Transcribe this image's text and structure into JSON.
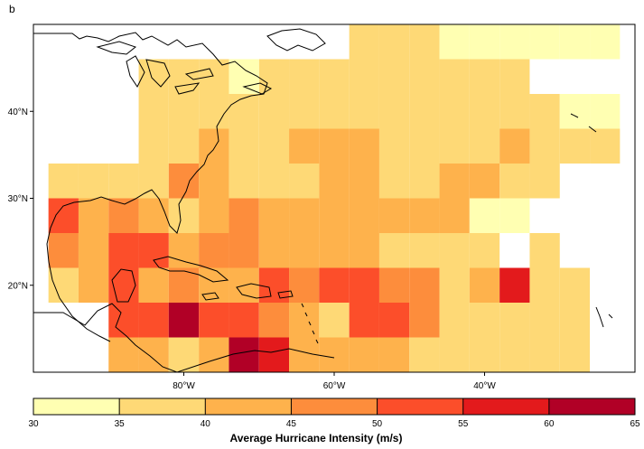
{
  "panel_label": "b",
  "map": {
    "lat_ticks": [
      {
        "value": 40,
        "label": "40°N"
      },
      {
        "value": 30,
        "label": "30°N"
      },
      {
        "value": 20,
        "label": "20°N"
      }
    ],
    "lon_ticks": [
      {
        "value": -80,
        "label": "80°W"
      },
      {
        "value": -60,
        "label": "60°W"
      },
      {
        "value": -40,
        "label": "40°W"
      }
    ],
    "extent": {
      "lon_min": -100,
      "lon_max": -20,
      "lat_min": 10,
      "lat_max": 50
    }
  },
  "colorbar": {
    "title": "Average Hurricane Intensity (m/s)",
    "breaks": [
      30,
      35,
      40,
      45,
      50,
      55,
      60,
      65
    ],
    "colors": [
      "#ffffb2",
      "#fed976",
      "#feb24c",
      "#fd8d3c",
      "#fc4e2a",
      "#e31a1c",
      "#b10026"
    ]
  },
  "chart_data": {
    "type": "heatmap",
    "title": "",
    "value_label": "Average Hurricane Intensity (m/s)",
    "cell_size_deg": 4,
    "value_note": "cell values are the representative midpoint of the colour bin (m/s)",
    "cells": [
      [
        -56,
        48,
        37
      ],
      [
        -52,
        48,
        37
      ],
      [
        -48,
        48,
        37
      ],
      [
        -44,
        48,
        33
      ],
      [
        -40,
        48,
        33
      ],
      [
        -36,
        48,
        33
      ],
      [
        -32,
        48,
        33
      ],
      [
        -28,
        48,
        33
      ],
      [
        -24,
        48,
        33
      ],
      [
        -68,
        44,
        37
      ],
      [
        -64,
        44,
        37
      ],
      [
        -60,
        44,
        37
      ],
      [
        -56,
        44,
        37
      ],
      [
        -52,
        44,
        37
      ],
      [
        -48,
        44,
        37
      ],
      [
        -44,
        44,
        37
      ],
      [
        -40,
        44,
        37
      ],
      [
        -36,
        44,
        37
      ],
      [
        -72,
        44,
        33
      ],
      [
        -84,
        44,
        37
      ],
      [
        -80,
        44,
        37
      ],
      [
        -76,
        44,
        37
      ],
      [
        -84,
        40,
        37
      ],
      [
        -80,
        40,
        37
      ],
      [
        -76,
        40,
        37
      ],
      [
        -72,
        40,
        37
      ],
      [
        -68,
        40,
        37
      ],
      [
        -64,
        40,
        37
      ],
      [
        -60,
        40,
        37
      ],
      [
        -56,
        40,
        37
      ],
      [
        -52,
        40,
        37
      ],
      [
        -48,
        40,
        37
      ],
      [
        -44,
        40,
        37
      ],
      [
        -40,
        40,
        37
      ],
      [
        -36,
        40,
        37
      ],
      [
        -32,
        40,
        37
      ],
      [
        -28,
        40,
        33
      ],
      [
        -24,
        40,
        33
      ],
      [
        -84,
        36,
        37
      ],
      [
        -80,
        36,
        37
      ],
      [
        -76,
        36,
        42
      ],
      [
        -72,
        36,
        37
      ],
      [
        -68,
        36,
        37
      ],
      [
        -64,
        36,
        42
      ],
      [
        -60,
        36,
        42
      ],
      [
        -56,
        36,
        42
      ],
      [
        -52,
        36,
        37
      ],
      [
        -48,
        36,
        37
      ],
      [
        -44,
        36,
        37
      ],
      [
        -40,
        36,
        37
      ],
      [
        -36,
        36,
        42
      ],
      [
        -32,
        36,
        37
      ],
      [
        -28,
        36,
        37
      ],
      [
        -24,
        36,
        37
      ],
      [
        -96,
        32,
        37
      ],
      [
        -92,
        32,
        37
      ],
      [
        -88,
        32,
        37
      ],
      [
        -84,
        32,
        37
      ],
      [
        -80,
        32,
        47
      ],
      [
        -76,
        32,
        42
      ],
      [
        -72,
        32,
        37
      ],
      [
        -68,
        32,
        37
      ],
      [
        -64,
        32,
        37
      ],
      [
        -60,
        32,
        42
      ],
      [
        -56,
        32,
        42
      ],
      [
        -52,
        32,
        37
      ],
      [
        -48,
        32,
        37
      ],
      [
        -44,
        32,
        42
      ],
      [
        -40,
        32,
        42
      ],
      [
        -36,
        32,
        37
      ],
      [
        -32,
        32,
        37
      ],
      [
        -96,
        28,
        52
      ],
      [
        -92,
        28,
        42
      ],
      [
        -88,
        28,
        47
      ],
      [
        -84,
        28,
        42
      ],
      [
        -80,
        28,
        37
      ],
      [
        -76,
        28,
        42
      ],
      [
        -72,
        28,
        47
      ],
      [
        -68,
        28,
        42
      ],
      [
        -64,
        28,
        42
      ],
      [
        -60,
        28,
        42
      ],
      [
        -56,
        28,
        42
      ],
      [
        -52,
        28,
        42
      ],
      [
        -48,
        28,
        42
      ],
      [
        -44,
        28,
        42
      ],
      [
        -40,
        28,
        33
      ],
      [
        -36,
        28,
        33
      ],
      [
        -96,
        24,
        47
      ],
      [
        -92,
        24,
        42
      ],
      [
        -88,
        24,
        52
      ],
      [
        -84,
        24,
        52
      ],
      [
        -80,
        24,
        42
      ],
      [
        -76,
        24,
        47
      ],
      [
        -72,
        24,
        47
      ],
      [
        -68,
        24,
        42
      ],
      [
        -64,
        24,
        42
      ],
      [
        -60,
        24,
        42
      ],
      [
        -56,
        24,
        42
      ],
      [
        -52,
        24,
        37
      ],
      [
        -48,
        24,
        37
      ],
      [
        -44,
        24,
        37
      ],
      [
        -40,
        24,
        37
      ],
      [
        -32,
        24,
        37
      ],
      [
        -96,
        20,
        37
      ],
      [
        -92,
        20,
        42
      ],
      [
        -88,
        20,
        52
      ],
      [
        -84,
        20,
        42
      ],
      [
        -80,
        20,
        47
      ],
      [
        -76,
        20,
        42
      ],
      [
        -72,
        20,
        42
      ],
      [
        -68,
        20,
        52
      ],
      [
        -64,
        20,
        47
      ],
      [
        -60,
        20,
        52
      ],
      [
        -56,
        20,
        52
      ],
      [
        -52,
        20,
        47
      ],
      [
        -48,
        20,
        47
      ],
      [
        -44,
        20,
        37
      ],
      [
        -40,
        20,
        42
      ],
      [
        -36,
        20,
        57
      ],
      [
        -32,
        20,
        37
      ],
      [
        -28,
        20,
        37
      ],
      [
        -88,
        16,
        52
      ],
      [
        -84,
        16,
        52
      ],
      [
        -80,
        16,
        62
      ],
      [
        -76,
        16,
        52
      ],
      [
        -72,
        16,
        52
      ],
      [
        -68,
        16,
        47
      ],
      [
        -64,
        16,
        42
      ],
      [
        -60,
        16,
        37
      ],
      [
        -56,
        16,
        52
      ],
      [
        -52,
        16,
        52
      ],
      [
        -48,
        16,
        47
      ],
      [
        -44,
        16,
        37
      ],
      [
        -40,
        16,
        37
      ],
      [
        -36,
        16,
        37
      ],
      [
        -32,
        16,
        37
      ],
      [
        -28,
        16,
        37
      ],
      [
        -88,
        12,
        42
      ],
      [
        -84,
        12,
        42
      ],
      [
        -80,
        12,
        37
      ],
      [
        -76,
        12,
        42
      ],
      [
        -72,
        12,
        62
      ],
      [
        -68,
        12,
        57
      ],
      [
        -64,
        12,
        42
      ],
      [
        -60,
        12,
        42
      ],
      [
        -56,
        12,
        42
      ],
      [
        -52,
        12,
        42
      ],
      [
        -48,
        12,
        37
      ],
      [
        -44,
        12,
        37
      ],
      [
        -40,
        12,
        37
      ],
      [
        -36,
        12,
        37
      ],
      [
        -32,
        12,
        37
      ],
      [
        -28,
        12,
        37
      ]
    ]
  }
}
